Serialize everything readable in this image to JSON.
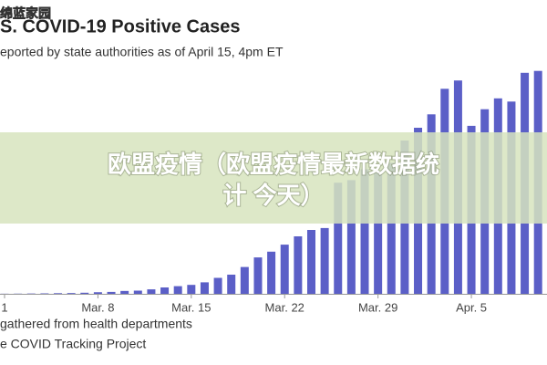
{
  "watermark": "绵蓝家园",
  "banner": {
    "line1": "欧盟疫情（欧盟疫情最新数据统",
    "line2": "计 今天）"
  },
  "chart_data": {
    "type": "bar",
    "title": "S. COVID-19 Positive Cases",
    "subtitle": "eported by state authorities as of April 15, 4pm ET",
    "footnotes": [
      "gathered from health departments",
      "e COVID Tracking Project"
    ],
    "color": "#5b5fc7",
    "ylim": [
      0,
      35000
    ],
    "categories": [
      "1",
      null,
      null,
      null,
      null,
      null,
      null,
      "Mar. 8",
      null,
      null,
      null,
      null,
      null,
      null,
      "Mar. 15",
      null,
      null,
      null,
      null,
      null,
      null,
      "Mar. 22",
      null,
      null,
      null,
      null,
      null,
      null,
      "Mar. 29",
      null,
      null,
      null,
      null,
      null,
      null,
      "Apr. 5",
      null,
      null,
      null,
      null,
      null
    ],
    "values": [
      20,
      30,
      50,
      70,
      100,
      120,
      170,
      250,
      300,
      450,
      500,
      700,
      1000,
      1200,
      1400,
      1800,
      2500,
      3000,
      4200,
      5700,
      6600,
      7700,
      9000,
      10000,
      10300,
      17400,
      17800,
      19500,
      19000,
      20500,
      24000,
      26000,
      28100,
      32100,
      33400,
      26300,
      28900,
      30600,
      30100,
      34600,
      34900
    ]
  }
}
